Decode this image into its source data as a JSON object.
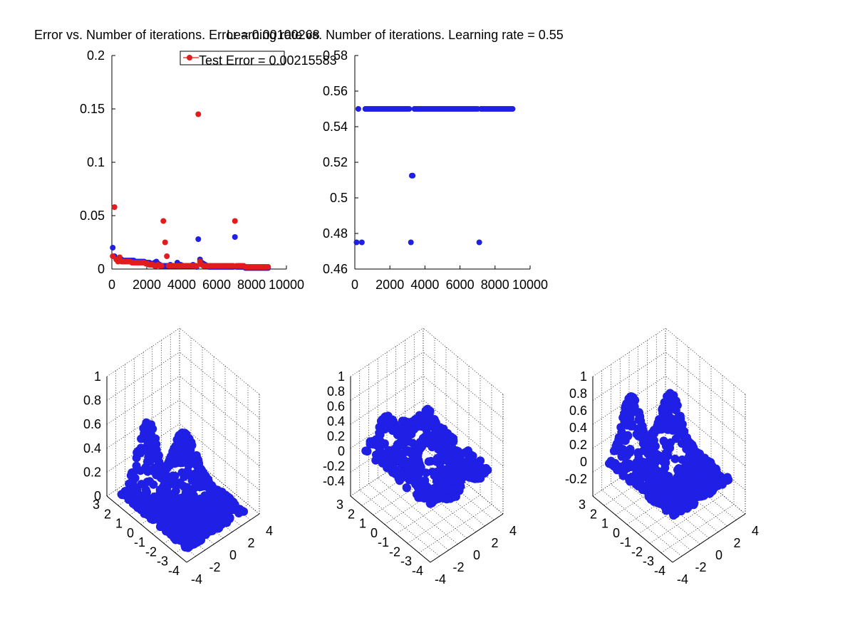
{
  "colors": {
    "blue": "#1f1fe6",
    "red": "#e01c1c",
    "axis": "#000000"
  },
  "chart_data": [
    {
      "id": "error-plot",
      "type": "scatter",
      "title": "Error vs. Number of iterations. Error = 0.00100268",
      "xlabel": "",
      "ylabel": "",
      "xlim": [
        0,
        10000
      ],
      "ylim": [
        0,
        0.2
      ],
      "xticks": [
        "0",
        "2000",
        "4000",
        "6000",
        "8000",
        "10000"
      ],
      "yticks": [
        "0",
        "0.05",
        "0.1",
        "0.15",
        "0.2"
      ],
      "legend": {
        "label": "Test Error = 0.00215583",
        "placement": "top"
      },
      "series": [
        {
          "color": "blue",
          "x": [
            50,
            150,
            250,
            350,
            450,
            550,
            650,
            750,
            850,
            950,
            1050,
            1150,
            1250,
            1350,
            1450,
            1550,
            1650,
            1750,
            1850,
            1950,
            2050,
            2150,
            2250,
            2350,
            2450,
            2550,
            2650,
            2750,
            2850,
            2950,
            3050,
            3150,
            3250,
            3350,
            3450,
            3550,
            3650,
            3750,
            3850,
            3950,
            4050,
            4150,
            4250,
            4350,
            4450,
            4550,
            4650,
            4750,
            4850,
            4950,
            5050,
            5150,
            5250,
            5350,
            5450,
            5550,
            5650,
            5750,
            5850,
            5950,
            6050,
            6150,
            6250,
            6350,
            6450,
            6550,
            6650,
            6750,
            6850,
            6950,
            7050,
            7150,
            7250,
            7350,
            7450,
            7550,
            7650,
            7750,
            7850,
            7950,
            8050,
            8150,
            8250,
            8350,
            8450,
            8550,
            8650,
            8750,
            8850,
            8950
          ],
          "y": [
            0.02,
            0.012,
            0.01,
            0.009,
            0.009,
            0.009,
            0.008,
            0.008,
            0.008,
            0.008,
            0.008,
            0.008,
            0.008,
            0.007,
            0.007,
            0.007,
            0.007,
            0.007,
            0.007,
            0.006,
            0.006,
            0.006,
            0.005,
            0.005,
            0.006,
            0.007,
            0.005,
            0.004,
            0.003,
            0.003,
            0.003,
            0.003,
            0.003,
            0.004,
            0.003,
            0.003,
            0.003,
            0.006,
            0.004,
            0.004,
            0.003,
            0.003,
            0.003,
            0.003,
            0.003,
            0.003,
            0.004,
            0.003,
            0.002,
            0.028,
            0.009,
            0.006,
            0.005,
            0.004,
            0.003,
            0.002,
            0.002,
            0.002,
            0.002,
            0.002,
            0.002,
            0.002,
            0.002,
            0.002,
            0.002,
            0.002,
            0.002,
            0.002,
            0.002,
            0.002,
            0.03,
            0.002,
            0.002,
            0.002,
            0.002,
            0.002,
            0.001,
            0.001,
            0.001,
            0.001,
            0.001,
            0.001,
            0.001,
            0.001,
            0.001,
            0.001,
            0.001,
            0.001,
            0.001,
            0.001
          ]
        },
        {
          "color": "red",
          "x": [
            50,
            150,
            250,
            350,
            450,
            550,
            650,
            750,
            850,
            950,
            1050,
            1150,
            1250,
            1350,
            1450,
            1550,
            1650,
            1750,
            1850,
            1950,
            2050,
            2150,
            2250,
            2350,
            2450,
            2550,
            2650,
            2750,
            2850,
            2950,
            3050,
            3150,
            3250,
            3350,
            3450,
            3550,
            3650,
            3750,
            3850,
            3950,
            4050,
            4150,
            4250,
            4350,
            4450,
            4550,
            4650,
            4750,
            4850,
            4950,
            5050,
            5150,
            5250,
            5350,
            5450,
            5550,
            5650,
            5750,
            5850,
            5950,
            6050,
            6150,
            6250,
            6350,
            6450,
            6550,
            6650,
            6750,
            6850,
            6950,
            7050,
            7150,
            7250,
            7350,
            7450,
            7550,
            7650,
            7750,
            7850,
            7950,
            8050,
            8150,
            8250,
            8350,
            8450,
            8550,
            8650,
            8750,
            8850,
            8950
          ],
          "y": [
            0.012,
            0.058,
            0.009,
            0.007,
            0.011,
            0.007,
            0.007,
            0.007,
            0.007,
            0.007,
            0.007,
            0.006,
            0.006,
            0.006,
            0.006,
            0.006,
            0.006,
            0.006,
            0.006,
            0.005,
            0.005,
            0.004,
            0.004,
            0.004,
            0.003,
            0.003,
            0.004,
            0.003,
            0.003,
            0.045,
            0.025,
            0.012,
            0.003,
            0.003,
            0.003,
            0.003,
            0.003,
            0.003,
            0.003,
            0.003,
            0.003,
            0.003,
            0.003,
            0.003,
            0.003,
            0.003,
            0.003,
            0.003,
            0.003,
            0.145,
            0.007,
            0.004,
            0.003,
            0.003,
            0.003,
            0.003,
            0.003,
            0.003,
            0.003,
            0.003,
            0.003,
            0.003,
            0.003,
            0.003,
            0.003,
            0.003,
            0.003,
            0.003,
            0.003,
            0.003,
            0.045,
            0.003,
            0.003,
            0.003,
            0.003,
            0.003,
            0.002,
            0.002,
            0.002,
            0.002,
            0.002,
            0.002,
            0.002,
            0.002,
            0.002,
            0.002,
            0.002,
            0.002,
            0.002,
            0.002
          ]
        }
      ]
    },
    {
      "id": "learning-rate-plot",
      "type": "scatter",
      "title": "Learning rate vs. Number of iterations. Learning rate = 0.55",
      "xlabel": "",
      "ylabel": "",
      "xlim": [
        0,
        10000
      ],
      "ylim": [
        0.46,
        0.58
      ],
      "xticks": [
        "0",
        "2000",
        "4000",
        "6000",
        "8000",
        "10000"
      ],
      "yticks": [
        "0.46",
        "0.48",
        "0.5",
        "0.52",
        "0.54",
        "0.56",
        "0.58"
      ],
      "series": [
        {
          "color": "blue",
          "x": [
            100,
            200,
            400,
            600,
            700,
            800,
            900,
            1000,
            1100,
            1200,
            1300,
            1400,
            1500,
            1600,
            1700,
            1800,
            1900,
            2000,
            2100,
            2200,
            2300,
            2400,
            2500,
            2600,
            2700,
            2800,
            2900,
            3000,
            3100,
            3200,
            3250,
            3300,
            3400,
            3500,
            3600,
            3700,
            3800,
            3900,
            4000,
            4100,
            4200,
            4300,
            4400,
            4500,
            4600,
            4700,
            4800,
            4900,
            5000,
            5100,
            5200,
            5300,
            5400,
            5500,
            5600,
            5700,
            5800,
            5900,
            6000,
            6100,
            6200,
            6300,
            6400,
            6500,
            6600,
            6700,
            6800,
            6900,
            7000,
            7100,
            7200,
            7300,
            7400,
            7500,
            7600,
            7700,
            7800,
            7900,
            8000,
            8100,
            8200,
            8300,
            8400,
            8500,
            8600,
            8700,
            8800,
            8900,
            9000
          ],
          "y": [
            0.475,
            0.55,
            0.475,
            0.55,
            0.55,
            0.55,
            0.55,
            0.55,
            0.55,
            0.55,
            0.55,
            0.55,
            0.55,
            0.55,
            0.55,
            0.55,
            0.55,
            0.55,
            0.55,
            0.55,
            0.55,
            0.55,
            0.55,
            0.55,
            0.55,
            0.55,
            0.55,
            0.55,
            0.55,
            0.475,
            0.5125,
            0.5125,
            0.55,
            0.55,
            0.55,
            0.55,
            0.55,
            0.55,
            0.55,
            0.55,
            0.55,
            0.55,
            0.55,
            0.55,
            0.55,
            0.55,
            0.55,
            0.55,
            0.55,
            0.55,
            0.55,
            0.55,
            0.55,
            0.55,
            0.55,
            0.55,
            0.55,
            0.55,
            0.55,
            0.55,
            0.55,
            0.55,
            0.55,
            0.55,
            0.55,
            0.55,
            0.55,
            0.55,
            0.55,
            0.475,
            0.55,
            0.55,
            0.55,
            0.55,
            0.55,
            0.55,
            0.55,
            0.55,
            0.55,
            0.55,
            0.55,
            0.55,
            0.55,
            0.55,
            0.55,
            0.55,
            0.55,
            0.55,
            0.55
          ]
        }
      ]
    },
    {
      "id": "surface-target",
      "type": "scatter",
      "dims": 3,
      "title": "",
      "xlim": [
        -4,
        4
      ],
      "ylim": [
        -4,
        3
      ],
      "zlim": [
        0,
        1
      ],
      "xticks": [
        "-4",
        "-2",
        "0",
        "2",
        "4"
      ],
      "yticks": [
        "-4",
        "-3",
        "-2",
        "-1",
        "0",
        "1",
        "2",
        "3"
      ],
      "zticks": [
        "0",
        "0.2",
        "0.4",
        "0.6",
        "0.8",
        "1"
      ],
      "series": [
        {
          "color": "blue",
          "seed": 7,
          "model": "target",
          "n": 900
        }
      ]
    },
    {
      "id": "surface-error",
      "type": "scatter",
      "dims": 3,
      "title": "",
      "xlim": [
        -4,
        4
      ],
      "ylim": [
        -4,
        3
      ],
      "zlim": [
        -0.6,
        1
      ],
      "xticks": [
        "-4",
        "-2",
        "0",
        "2",
        "4"
      ],
      "yticks": [
        "-4",
        "-3",
        "-2",
        "-1",
        "0",
        "1",
        "2",
        "3"
      ],
      "zticks": [
        "-0.4",
        "-0.2",
        "0",
        "0.2",
        "0.4",
        "0.6",
        "0.8",
        "1"
      ],
      "series": [
        {
          "color": "blue",
          "seed": 11,
          "model": "error",
          "n": 700
        }
      ]
    },
    {
      "id": "surface-output",
      "type": "scatter",
      "dims": 3,
      "title": "",
      "xlim": [
        -4,
        4
      ],
      "ylim": [
        -4,
        3
      ],
      "zlim": [
        -0.4,
        1
      ],
      "xticks": [
        "-4",
        "-2",
        "0",
        "2",
        "4"
      ],
      "yticks": [
        "-4",
        "-3",
        "-2",
        "-1",
        "0",
        "1",
        "2",
        "3"
      ],
      "zticks": [
        "-0.2",
        "0",
        "0.2",
        "0.4",
        "0.6",
        "0.8",
        "1"
      ],
      "series": [
        {
          "color": "blue",
          "seed": 19,
          "model": "output",
          "n": 700
        }
      ]
    }
  ]
}
